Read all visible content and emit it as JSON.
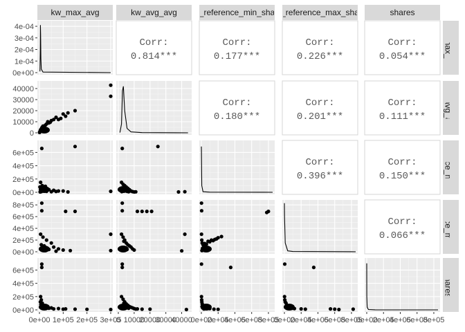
{
  "chart_data": {
    "type": "scatter-matrix",
    "variables": [
      "kw_max_avg",
      "kw_avg_avg",
      "self_reference_min_shares",
      "self_reference_max_shares",
      "shares"
    ],
    "strip_labels": [
      "kw_max_avg",
      "kw_avg_avg",
      "_reference_min_sha",
      "_reference_max_sha",
      "shares"
    ],
    "row_strip_labels": [
      "kw_max_avg",
      "kw_avg_avg",
      "ference_min_",
      "ference_max_",
      "shares"
    ],
    "correlations": [
      {
        "row": 0,
        "col": 1,
        "label": "Corr:",
        "value": "0.814***"
      },
      {
        "row": 0,
        "col": 2,
        "label": "Corr:",
        "value": "0.177***"
      },
      {
        "row": 0,
        "col": 3,
        "label": "Corr:",
        "value": "0.226***"
      },
      {
        "row": 0,
        "col": 4,
        "label": "Corr:",
        "value": "0.054***"
      },
      {
        "row": 1,
        "col": 2,
        "label": "Corr:",
        "value": "0.180***"
      },
      {
        "row": 1,
        "col": 3,
        "label": "Corr:",
        "value": "0.201***"
      },
      {
        "row": 1,
        "col": 4,
        "label": "Corr:",
        "value": "0.111***"
      },
      {
        "row": 2,
        "col": 3,
        "label": "Corr:",
        "value": "0.396***"
      },
      {
        "row": 2,
        "col": 4,
        "label": "Corr:",
        "value": "0.150***"
      },
      {
        "row": 3,
        "col": 4,
        "label": "Corr:",
        "value": "0.066***"
      }
    ],
    "x_axes": [
      {
        "range": [
          0,
          300000
        ],
        "ticks": [
          0,
          100000,
          200000,
          300000
        ],
        "labels": [
          "0e+00",
          "1e+05",
          "2e+05",
          "3e+05"
        ]
      },
      {
        "range": [
          0,
          45000
        ],
        "ticks": [
          0,
          10000,
          20000,
          30000,
          40000
        ],
        "labels": [
          "0",
          "10000",
          "20000",
          "30000",
          "40000"
        ]
      },
      {
        "range": [
          0,
          850000
        ],
        "ticks": [
          0,
          200000,
          400000,
          600000,
          800000
        ],
        "labels": [
          "0e+00",
          "2e+05",
          "4e+05",
          "6e+05",
          "8e+05"
        ]
      },
      {
        "range": [
          0,
          850000
        ],
        "ticks": [
          0,
          200000,
          400000,
          600000,
          800000
        ],
        "labels": [
          "0e+00",
          "2e+05",
          "4e+05",
          "6e+05",
          "8e+05"
        ]
      },
      {
        "range": [
          0,
          850000
        ],
        "ticks": [
          0,
          200000,
          400000,
          600000,
          800000
        ],
        "labels": [
          "0e+00",
          "2e+05",
          "4e+05",
          "6e+05",
          "8e+05"
        ]
      }
    ],
    "y_axes": [
      {
        "range": [
          0,
          0.00043
        ],
        "ticks": [
          0,
          0.0001,
          0.0002,
          0.0003,
          0.0004
        ],
        "labels": [
          "0e+00",
          "1e-04",
          "2e-04",
          "3e-04",
          "4e-04"
        ]
      },
      {
        "range": [
          0,
          45000
        ],
        "ticks": [
          0,
          10000,
          20000,
          30000,
          40000
        ],
        "labels": [
          "0",
          "10000",
          "20000",
          "30000",
          "40000"
        ]
      },
      {
        "range": [
          0,
          750000
        ],
        "ticks": [
          0,
          200000,
          400000,
          600000
        ],
        "labels": [
          "0e+00",
          "2e+05",
          "4e+05",
          "6e+05"
        ]
      },
      {
        "range": [
          0,
          850000
        ],
        "ticks": [
          0,
          200000,
          400000,
          600000,
          800000
        ],
        "labels": [
          "0e+00",
          "2e+05",
          "4e+05",
          "6e+05",
          "8e+05"
        ]
      },
      {
        "range": [
          0,
          750000
        ],
        "ticks": [
          0,
          200000,
          400000,
          600000
        ],
        "labels": [
          "0e+00",
          "2e+05",
          "4e+05",
          "6e+05"
        ]
      }
    ],
    "density_shape": [
      [
        [
          2000,
          1e-05
        ],
        [
          3500,
          0.0002
        ],
        [
          4200,
          0.00041
        ],
        [
          5000,
          0.00033
        ],
        [
          6000,
          0.00012
        ],
        [
          8000,
          3e-05
        ],
        [
          15000,
          5e-06
        ],
        [
          300000,
          0
        ]
      ],
      [
        [
          1000,
          200
        ],
        [
          2000,
          8000
        ],
        [
          2600,
          38000
        ],
        [
          3200,
          42000
        ],
        [
          4000,
          20000
        ],
        [
          5500,
          4000
        ],
        [
          8000,
          800
        ],
        [
          15000,
          200
        ],
        [
          44000,
          0
        ]
      ],
      [
        [
          0,
          690000
        ],
        [
          1000,
          650000
        ],
        [
          5000,
          100000
        ],
        [
          20000,
          8000
        ],
        [
          100000,
          2000
        ],
        [
          850000,
          0
        ]
      ],
      [
        [
          0,
          830000
        ],
        [
          2000,
          600000
        ],
        [
          10000,
          150000
        ],
        [
          40000,
          15000
        ],
        [
          100000,
          5000
        ],
        [
          850000,
          0
        ]
      ],
      [
        [
          0,
          700000
        ],
        [
          1000,
          200000
        ],
        [
          5000,
          40000
        ],
        [
          20000,
          5000
        ],
        [
          100000,
          1000
        ],
        [
          850000,
          0
        ]
      ]
    ],
    "scatter": {
      "r1c0": [
        [
          300000,
          43000
        ],
        [
          300000,
          33000
        ],
        [
          150000,
          20000
        ],
        [
          120000,
          18000
        ],
        [
          110000,
          15000
        ],
        [
          90000,
          13000
        ],
        [
          60000,
          12000
        ],
        [
          40000,
          9000
        ],
        [
          30000,
          8000
        ],
        [
          20000,
          6000
        ],
        [
          12000,
          5000
        ],
        [
          8000,
          3000
        ],
        [
          5000,
          2000
        ],
        [
          3000,
          1500
        ],
        [
          1500,
          800
        ],
        [
          500,
          300
        ],
        [
          50000,
          11000
        ],
        [
          70000,
          14000
        ],
        [
          100000,
          17000
        ],
        [
          35000,
          10000
        ],
        [
          25000,
          7000
        ],
        [
          15000,
          6000
        ],
        [
          10000,
          4500
        ],
        [
          45000,
          9500
        ],
        [
          80000,
          12000
        ]
      ],
      "r2c0": [
        [
          10000,
          660000
        ],
        [
          150000,
          690000
        ],
        [
          300000,
          15000
        ],
        [
          5000,
          150000
        ],
        [
          12000,
          100000
        ],
        [
          18000,
          50000
        ],
        [
          20000,
          20000
        ],
        [
          40000,
          40000
        ],
        [
          60000,
          30000
        ],
        [
          80000,
          20000
        ],
        [
          100000,
          20000
        ],
        [
          8000,
          10000
        ],
        [
          3000,
          5000
        ],
        [
          2000,
          80000
        ],
        [
          25000,
          90000
        ],
        [
          15000,
          25000
        ],
        [
          30000,
          15000
        ],
        [
          50000,
          8000
        ],
        [
          70000,
          12000
        ],
        [
          120000,
          5000
        ]
      ],
      "r2c1": [
        [
          2500,
          660000
        ],
        [
          25000,
          690000
        ],
        [
          42000,
          8000
        ],
        [
          38000,
          5000
        ],
        [
          2000,
          150000
        ],
        [
          3000,
          120000
        ],
        [
          4000,
          100000
        ],
        [
          5000,
          80000
        ],
        [
          6000,
          60000
        ],
        [
          7000,
          40000
        ],
        [
          8000,
          20000
        ],
        [
          9000,
          10000
        ],
        [
          10000,
          5000
        ],
        [
          3500,
          70000
        ],
        [
          4500,
          30000
        ],
        [
          5500,
          15000
        ],
        [
          6500,
          9000
        ],
        [
          11000,
          7000
        ],
        [
          2000,
          40000
        ],
        [
          2200,
          10000
        ]
      ],
      "r3c0": [
        [
          10000,
          830000
        ],
        [
          10000,
          700000
        ],
        [
          110000,
          690000
        ],
        [
          150000,
          690000
        ],
        [
          300000,
          300000
        ],
        [
          5000,
          300000
        ],
        [
          15000,
          250000
        ],
        [
          30000,
          200000
        ],
        [
          50000,
          150000
        ],
        [
          20000,
          100000
        ],
        [
          60000,
          80000
        ],
        [
          80000,
          50000
        ],
        [
          100000,
          30000
        ],
        [
          8000,
          120000
        ],
        [
          12000,
          60000
        ],
        [
          40000,
          40000
        ],
        [
          25000,
          20000
        ],
        [
          70000,
          10000
        ],
        [
          300000,
          20000
        ],
        [
          130000,
          20000
        ]
      ],
      "r3c1": [
        [
          2500,
          830000
        ],
        [
          2500,
          700000
        ],
        [
          12000,
          690000
        ],
        [
          15000,
          690000
        ],
        [
          18000,
          690000
        ],
        [
          21000,
          690000
        ],
        [
          42000,
          300000
        ],
        [
          2000,
          300000
        ],
        [
          3000,
          250000
        ],
        [
          4000,
          200000
        ],
        [
          5000,
          150000
        ],
        [
          6000,
          120000
        ],
        [
          7000,
          100000
        ],
        [
          8000,
          80000
        ],
        [
          9000,
          50000
        ],
        [
          10000,
          30000
        ],
        [
          3500,
          180000
        ],
        [
          4500,
          60000
        ],
        [
          5500,
          40000
        ],
        [
          40000,
          15000
        ]
      ],
      "r3c2": [
        [
          2000,
          830000
        ],
        [
          3000,
          700000
        ],
        [
          800000,
          690000
        ],
        [
          780000,
          670000
        ],
        [
          2000,
          300000
        ],
        [
          5000,
          200000
        ],
        [
          10000,
          150000
        ],
        [
          20000,
          120000
        ],
        [
          40000,
          140000
        ],
        [
          80000,
          180000
        ],
        [
          120000,
          200000
        ],
        [
          160000,
          210000
        ],
        [
          200000,
          240000
        ],
        [
          240000,
          260000
        ],
        [
          30000,
          100000
        ],
        [
          60000,
          130000
        ],
        [
          100000,
          170000
        ],
        [
          140000,
          190000
        ],
        [
          180000,
          220000
        ],
        [
          15000,
          60000
        ],
        [
          25000,
          40000
        ],
        [
          7000,
          20000
        ],
        [
          50000,
          80000
        ]
      ],
      "r4c0": [
        [
          10000,
          690000
        ],
        [
          10000,
          640000
        ],
        [
          5000,
          200000
        ],
        [
          8000,
          150000
        ],
        [
          12000,
          100000
        ],
        [
          15000,
          70000
        ],
        [
          20000,
          50000
        ],
        [
          30000,
          40000
        ],
        [
          50000,
          30000
        ],
        [
          80000,
          20000
        ],
        [
          110000,
          15000
        ],
        [
          150000,
          10000
        ],
        [
          200000,
          8000
        ],
        [
          300000,
          5000
        ],
        [
          4000,
          120000
        ],
        [
          6000,
          80000
        ],
        [
          25000,
          30000
        ],
        [
          40000,
          25000
        ],
        [
          60000,
          15000
        ],
        [
          100000,
          10000
        ]
      ],
      "r4c1": [
        [
          2500,
          690000
        ],
        [
          2500,
          640000
        ],
        [
          2000,
          200000
        ],
        [
          3000,
          160000
        ],
        [
          4000,
          120000
        ],
        [
          5000,
          90000
        ],
        [
          6000,
          70000
        ],
        [
          7000,
          50000
        ],
        [
          8000,
          40000
        ],
        [
          9000,
          30000
        ],
        [
          10000,
          20000
        ],
        [
          12000,
          15000
        ],
        [
          15000,
          10000
        ],
        [
          20000,
          10000
        ],
        [
          43000,
          5000
        ],
        [
          3500,
          100000
        ],
        [
          4500,
          60000
        ],
        [
          5500,
          35000
        ],
        [
          6500,
          25000
        ],
        [
          11000,
          12000
        ]
      ],
      "r4c2": [
        [
          2000,
          690000
        ],
        [
          350000,
          640000
        ],
        [
          2000,
          200000
        ],
        [
          4000,
          150000
        ],
        [
          6000,
          120000
        ],
        [
          10000,
          90000
        ],
        [
          20000,
          60000
        ],
        [
          40000,
          40000
        ],
        [
          60000,
          20000
        ],
        [
          100000,
          20000
        ],
        [
          150000,
          10000
        ],
        [
          200000,
          8000
        ],
        [
          8000,
          50000
        ],
        [
          15000,
          30000
        ],
        [
          30000,
          15000
        ]
      ],
      "r4c3": [
        [
          4000,
          690000
        ],
        [
          350000,
          640000
        ],
        [
          2000,
          200000
        ],
        [
          5000,
          150000
        ],
        [
          10000,
          120000
        ],
        [
          20000,
          100000
        ],
        [
          40000,
          60000
        ],
        [
          80000,
          40000
        ],
        [
          120000,
          20000
        ],
        [
          200000,
          15000
        ],
        [
          250000,
          10000
        ],
        [
          550000,
          15000
        ],
        [
          600000,
          10000
        ],
        [
          650000,
          5000
        ],
        [
          820000,
          10000
        ],
        [
          15000,
          50000
        ],
        [
          60000,
          30000
        ],
        [
          100000,
          25000
        ]
      ]
    }
  }
}
